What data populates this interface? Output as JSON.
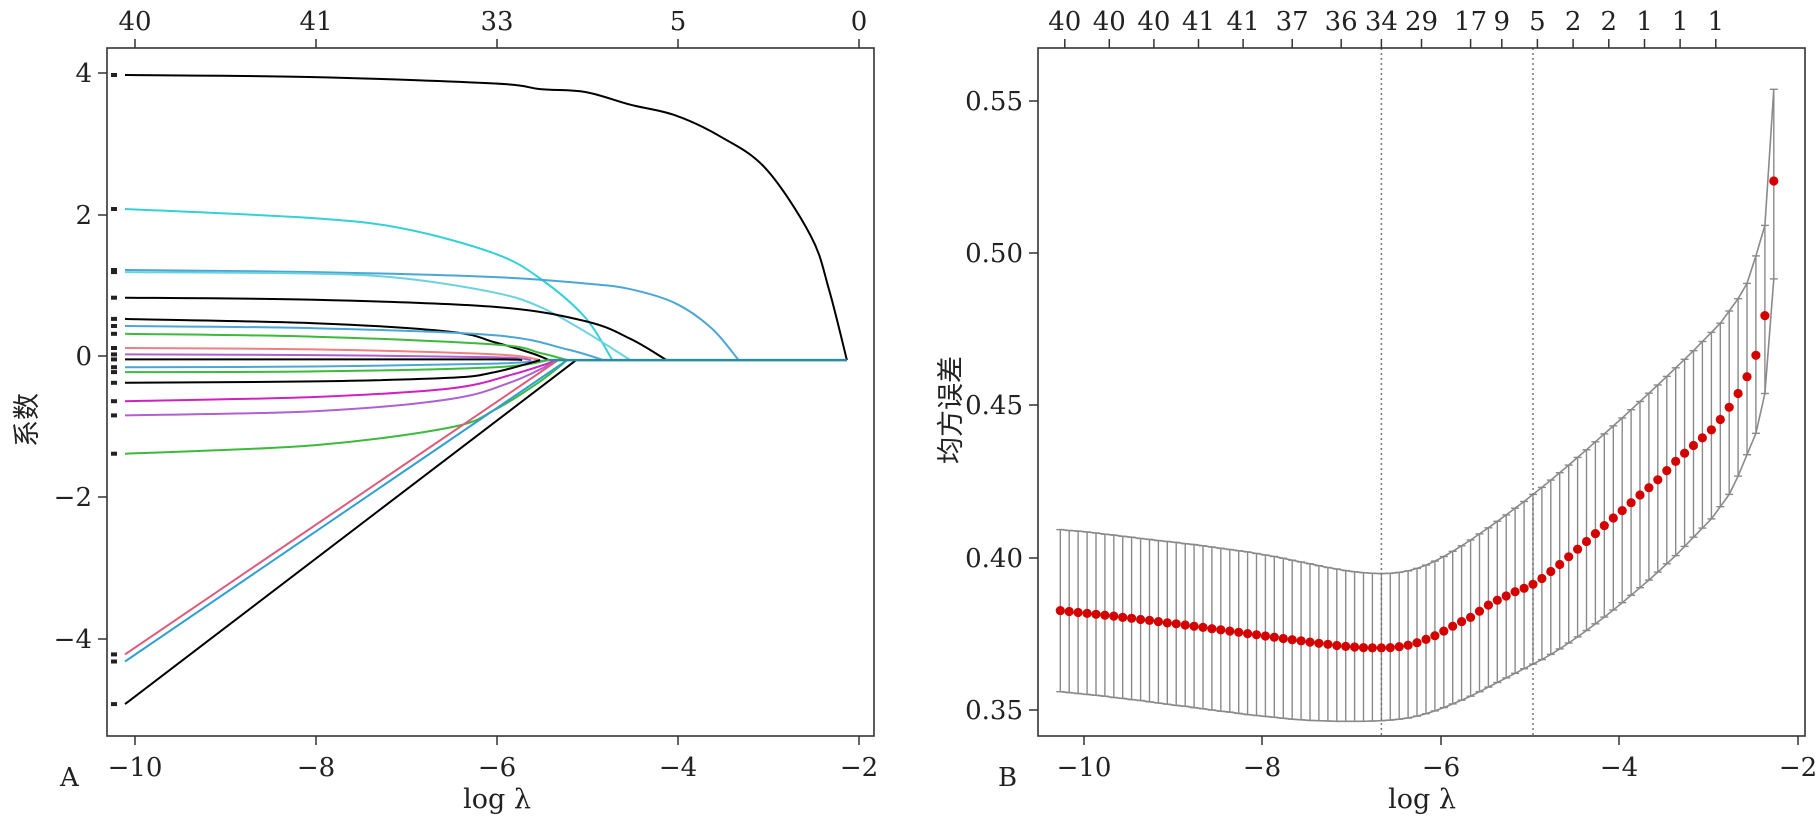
{
  "panel_a": {
    "tag": "A",
    "ylabel": "系数",
    "xlabel": "log λ",
    "x_ticks": [
      "−10",
      "−8",
      "−6",
      "−4",
      "−2"
    ],
    "y_ticks": [
      "−4",
      "−2",
      "0",
      "2",
      "4"
    ],
    "top_ticks": [
      "40",
      "41",
      "33",
      "5",
      "0"
    ]
  },
  "panel_b": {
    "tag": "B",
    "ylabel": "均方误差",
    "xlabel": "log λ",
    "x_ticks": [
      "−10",
      "−8",
      "−6",
      "−4",
      "−2"
    ],
    "y_ticks": [
      "0.35",
      "0.40",
      "0.45",
      "0.50",
      "0.55"
    ],
    "top_ticks": [
      "40",
      "40",
      "40",
      "41",
      "41",
      "37",
      "36",
      "34",
      "29",
      "17",
      "9",
      "5",
      "2",
      "2",
      "1",
      "1",
      "1"
    ]
  },
  "chart_data": [
    {
      "type": "line",
      "panel": "A",
      "xlabel": "log λ",
      "ylabel": "系数",
      "xlim": [
        -10.3,
        -1.8
      ],
      "ylim": [
        -5.3,
        4.4
      ],
      "x_ticks": [
        -10,
        -8,
        -6,
        -4,
        -2
      ],
      "y_ticks": [
        -4,
        -2,
        0,
        2,
        4
      ],
      "top_axis": {
        "x": [
          -10,
          -8,
          -6,
          -4,
          -2
        ],
        "labels": [
          "40",
          "41",
          "33",
          "5",
          "0"
        ]
      },
      "grid": false,
      "series": [
        {
          "color": "#000000",
          "x": [
            -10.1,
            -8,
            -6,
            -5.5,
            -5,
            -4.5,
            -4,
            -3.5,
            -3,
            -2.5,
            -2.3,
            -2.1
          ],
          "y": [
            4.02,
            3.99,
            3.9,
            3.82,
            3.78,
            3.6,
            3.45,
            3.15,
            2.7,
            1.75,
            1.0,
            0
          ]
        },
        {
          "color": "#34d0d8",
          "x": [
            -10.1,
            -8,
            -7,
            -6,
            -5.5,
            -5,
            -4.7
          ],
          "y": [
            2.13,
            2.0,
            1.85,
            1.5,
            1.15,
            0.6,
            0
          ]
        },
        {
          "color": "#4aa6d6",
          "x": [
            -10.1,
            -8,
            -6,
            -5,
            -4.5,
            -4,
            -3.6,
            -3.3
          ],
          "y": [
            1.27,
            1.24,
            1.17,
            1.08,
            1.0,
            0.8,
            0.45,
            0
          ]
        },
        {
          "color": "#6ad2e0",
          "x": [
            -10.1,
            -8,
            -7,
            -6,
            -5.5,
            -5,
            -4.5
          ],
          "y": [
            1.24,
            1.22,
            1.15,
            0.95,
            0.75,
            0.4,
            0
          ]
        },
        {
          "color": "#000000",
          "x": [
            -10.1,
            -8,
            -6,
            -5,
            -4.5,
            -4.1
          ],
          "y": [
            0.88,
            0.85,
            0.75,
            0.55,
            0.3,
            0
          ]
        },
        {
          "color": "#000000",
          "x": [
            -10.1,
            -8,
            -6.5,
            -6,
            -5.6,
            -5.4
          ],
          "y": [
            0.58,
            0.52,
            0.4,
            0.25,
            0.1,
            0
          ]
        },
        {
          "color": "#4aa6d6",
          "x": [
            -10.1,
            -8,
            -6,
            -5.2,
            -4.8
          ],
          "y": [
            0.48,
            0.45,
            0.35,
            0.15,
            0
          ]
        },
        {
          "color": "#3cba3c",
          "x": [
            -10.1,
            -8,
            -6,
            -5.5,
            -5.2
          ],
          "y": [
            0.37,
            0.33,
            0.22,
            0.1,
            0
          ]
        },
        {
          "color": "#f08080",
          "x": [
            -10.1,
            -8,
            -6,
            -5.5
          ],
          "y": [
            0.17,
            0.15,
            0.08,
            0
          ]
        },
        {
          "color": "#b060d0",
          "x": [
            -10.1,
            -8,
            -6,
            -5.6
          ],
          "y": [
            0.08,
            0.07,
            0.04,
            0
          ]
        },
        {
          "color": "#000000",
          "x": [
            -10.1,
            -8,
            -6,
            -5.7
          ],
          "y": [
            0.01,
            0.01,
            0.01,
            0
          ]
        },
        {
          "color": "#4aa6d6",
          "x": [
            -10.1,
            -8,
            -6,
            -5.4
          ],
          "y": [
            -0.1,
            -0.09,
            -0.05,
            0
          ]
        },
        {
          "color": "#3cba3c",
          "x": [
            -10.1,
            -8,
            -6,
            -5.4
          ],
          "y": [
            -0.17,
            -0.16,
            -0.1,
            0
          ]
        },
        {
          "color": "#000000",
          "x": [
            -10.1,
            -8,
            -6.5,
            -6,
            -5.5
          ],
          "y": [
            -0.32,
            -0.3,
            -0.25,
            -0.17,
            0
          ]
        },
        {
          "color": "#d020c0",
          "x": [
            -10.1,
            -8,
            -6.5,
            -5.8,
            -5.3
          ],
          "y": [
            -0.58,
            -0.52,
            -0.4,
            -0.2,
            0
          ]
        },
        {
          "color": "#b060d0",
          "x": [
            -10.1,
            -8,
            -6.5,
            -5.8,
            -5.3
          ],
          "y": [
            -0.78,
            -0.72,
            -0.55,
            -0.3,
            0
          ]
        },
        {
          "color": "#3cba3c",
          "x": [
            -10.1,
            -8,
            -6.5,
            -6,
            -5.5,
            -5.2
          ],
          "y": [
            -1.32,
            -1.2,
            -0.95,
            -0.7,
            -0.3,
            0
          ]
        },
        {
          "color": "#e05a7a",
          "x": [
            -10.1,
            -5.3
          ],
          "y": [
            -4.15,
            0
          ]
        },
        {
          "color": "#2f9fd6",
          "x": [
            -10.1,
            -5.2
          ],
          "y": [
            -4.25,
            0
          ]
        },
        {
          "color": "#000000",
          "x": [
            -10.1,
            -5.1
          ],
          "y": [
            -4.85,
            0
          ]
        }
      ]
    },
    {
      "type": "scatter",
      "panel": "B",
      "xlabel": "log λ",
      "ylabel": "均方误差",
      "xlim": [
        -10.4,
        -1.8
      ],
      "ylim": [
        0.343,
        0.568
      ],
      "x_ticks": [
        -10,
        -8,
        -6,
        -4,
        -2
      ],
      "y_ticks": [
        0.35,
        0.4,
        0.45,
        0.5,
        0.55
      ],
      "top_axis": {
        "x": [
          -10.1,
          -9.6,
          -9.1,
          -8.6,
          -8.1,
          -7.55,
          -7.0,
          -6.55,
          -6.1,
          -5.55,
          -5.2,
          -4.8,
          -4.4,
          -4.0,
          -3.6,
          -3.2,
          -2.8
        ],
        "labels": [
          "40",
          "40",
          "40",
          "41",
          "41",
          "37",
          "36",
          "34",
          "29",
          "17",
          "9",
          "5",
          "2",
          "2",
          "1",
          "1",
          "1"
        ]
      },
      "vertical_lines": [
        -6.55,
        -4.85
      ],
      "grid": false,
      "x": [
        -10.15,
        -10.05,
        -9.95,
        -9.85,
        -9.75,
        -9.65,
        -9.55,
        -9.45,
        -9.35,
        -9.25,
        -9.15,
        -9.05,
        -8.95,
        -8.85,
        -8.75,
        -8.65,
        -8.55,
        -8.45,
        -8.35,
        -8.25,
        -8.15,
        -8.05,
        -7.95,
        -7.85,
        -7.75,
        -7.65,
        -7.55,
        -7.45,
        -7.35,
        -7.25,
        -7.15,
        -7.05,
        -6.95,
        -6.85,
        -6.75,
        -6.65,
        -6.55,
        -6.45,
        -6.35,
        -6.25,
        -6.15,
        -6.05,
        -5.95,
        -5.85,
        -5.75,
        -5.65,
        -5.55,
        -5.45,
        -5.35,
        -5.25,
        -5.15,
        -5.05,
        -4.95,
        -4.85,
        -4.75,
        -4.65,
        -4.55,
        -4.45,
        -4.35,
        -4.25,
        -4.15,
        -4.05,
        -3.95,
        -3.85,
        -3.75,
        -3.65,
        -3.55,
        -3.45,
        -3.35,
        -3.25,
        -3.15,
        -3.05,
        -2.95,
        -2.85,
        -2.75,
        -2.65,
        -2.55,
        -2.45,
        -2.35,
        -2.25,
        -2.15
      ],
      "values": [
        0.384,
        0.3837,
        0.3834,
        0.3831,
        0.3828,
        0.3825,
        0.3822,
        0.3818,
        0.3815,
        0.3811,
        0.3808,
        0.3804,
        0.38,
        0.3797,
        0.3793,
        0.3789,
        0.3785,
        0.3781,
        0.3777,
        0.3773,
        0.3769,
        0.3765,
        0.3761,
        0.3757,
        0.3753,
        0.3749,
        0.3745,
        0.3741,
        0.3737,
        0.3733,
        0.373,
        0.3726,
        0.3723,
        0.3721,
        0.3719,
        0.3718,
        0.3718,
        0.3719,
        0.3722,
        0.3727,
        0.3735,
        0.3746,
        0.3758,
        0.3773,
        0.3789,
        0.3804,
        0.3818,
        0.3838,
        0.3858,
        0.3874,
        0.3888,
        0.3902,
        0.3913,
        0.3926,
        0.3945,
        0.3968,
        0.3991,
        0.4016,
        0.4041,
        0.4066,
        0.4092,
        0.4118,
        0.4143,
        0.4167,
        0.4193,
        0.4218,
        0.4242,
        0.4268,
        0.4298,
        0.4328,
        0.4355,
        0.438,
        0.4405,
        0.4431,
        0.4465,
        0.4505,
        0.455,
        0.4605,
        0.4675,
        0.4805,
        0.5245
      ],
      "lower": [
        0.3575,
        0.3572,
        0.3569,
        0.3566,
        0.3563,
        0.356,
        0.3556,
        0.3553,
        0.3549,
        0.3546,
        0.3542,
        0.3538,
        0.3534,
        0.353,
        0.3527,
        0.3523,
        0.3519,
        0.3515,
        0.3511,
        0.3508,
        0.3504,
        0.35,
        0.3497,
        0.3494,
        0.3491,
        0.3488,
        0.3485,
        0.3483,
        0.3481,
        0.348,
        0.3479,
        0.3478,
        0.3478,
        0.3478,
        0.3478,
        0.3479,
        0.348,
        0.3482,
        0.3485,
        0.3489,
        0.3495,
        0.3503,
        0.3512,
        0.3523,
        0.3535,
        0.3547,
        0.356,
        0.3575,
        0.359,
        0.3605,
        0.362,
        0.3635,
        0.365,
        0.3665,
        0.368,
        0.3697,
        0.3715,
        0.3734,
        0.3754,
        0.3775,
        0.3797,
        0.3819,
        0.3842,
        0.3866,
        0.389,
        0.3915,
        0.394,
        0.3966,
        0.3993,
        0.402,
        0.405,
        0.408,
        0.411,
        0.414,
        0.418,
        0.422,
        0.428,
        0.435,
        0.442,
        0.455,
        0.4925
      ],
      "upper": [
        0.4105,
        0.4102,
        0.41,
        0.4097,
        0.4094,
        0.409,
        0.4087,
        0.4083,
        0.408,
        0.4076,
        0.4073,
        0.4069,
        0.4066,
        0.4063,
        0.4059,
        0.4056,
        0.4052,
        0.4048,
        0.4044,
        0.404,
        0.4036,
        0.4032,
        0.4027,
        0.4022,
        0.4017,
        0.4011,
        0.4005,
        0.3999,
        0.3993,
        0.3987,
        0.3981,
        0.3976,
        0.3971,
        0.3967,
        0.3964,
        0.3962,
        0.3961,
        0.3962,
        0.3965,
        0.397,
        0.3978,
        0.3989,
        0.4002,
        0.4017,
        0.4034,
        0.4052,
        0.4071,
        0.4091,
        0.4111,
        0.4132,
        0.4153,
        0.4175,
        0.4197,
        0.422,
        0.4243,
        0.4267,
        0.4291,
        0.4316,
        0.4341,
        0.4366,
        0.4392,
        0.4418,
        0.4444,
        0.447,
        0.4497,
        0.4524,
        0.4551,
        0.4578,
        0.4606,
        0.4634,
        0.4662,
        0.469,
        0.472,
        0.475,
        0.478,
        0.482,
        0.486,
        0.491,
        0.5,
        0.51,
        0.5545
      ]
    }
  ]
}
